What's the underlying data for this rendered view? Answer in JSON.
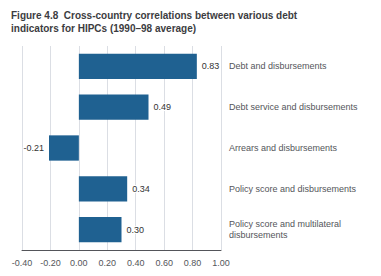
{
  "chart_data": {
    "type": "bar",
    "orientation": "horizontal",
    "title": "Figure 4.8  Cross-country correlations between various debt\nindicators for HIPCs (1990–98 average)",
    "categories": [
      "Debt and disbursements",
      "Debt service and disbursements",
      "Arrears and disbursements",
      "Policy score and disbursements",
      "Policy score and multilateral\ndisbursements"
    ],
    "values": [
      0.83,
      0.49,
      -0.21,
      0.34,
      0.3
    ],
    "value_labels": [
      "0.83",
      "0.49",
      "-0.21",
      "0.34",
      "0.30"
    ],
    "data_labels": true,
    "color": "#1f6191",
    "xlim": [
      -0.4,
      1.0
    ],
    "xticks": [
      {
        "value": -0.4,
        "label": "-0.40"
      },
      {
        "value": -0.2,
        "label": "-0.20"
      },
      {
        "value": 0.0,
        "label": "0.00"
      },
      {
        "value": 0.2,
        "label": "0.20"
      },
      {
        "value": 0.4,
        "label": "0.40"
      },
      {
        "value": 0.6,
        "label": "0.60"
      },
      {
        "value": 0.8,
        "label": "0.80"
      },
      {
        "value": 1.0,
        "label": "1.00"
      }
    ],
    "grid": true
  }
}
